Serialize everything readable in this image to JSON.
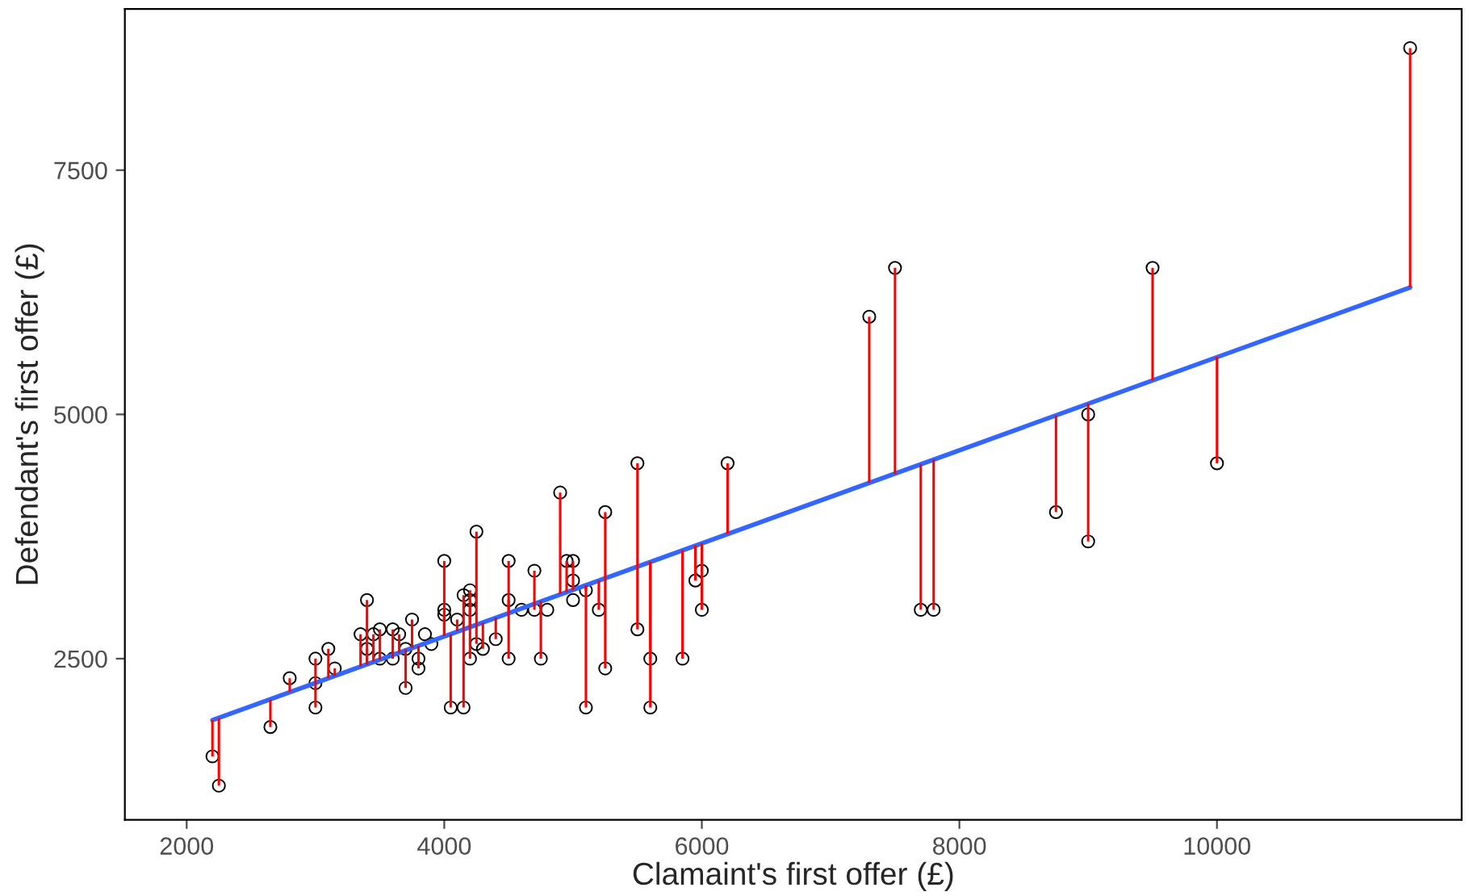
{
  "chart_data": {
    "type": "scatter",
    "xlabel": "Clamaint's first offer (£)",
    "ylabel": "Defendant's first offer (£)",
    "xlim": [
      1520,
      11900
    ],
    "ylim": [
      850,
      9150
    ],
    "xticks": [
      2000,
      4000,
      6000,
      8000,
      10000
    ],
    "yticks": [
      2500,
      5000,
      7500
    ],
    "grid": false,
    "legend": false,
    "series": [
      {
        "type": "scatter",
        "color": "#000000",
        "marker": "circle",
        "x": [
          2200,
          2250,
          2650,
          2800,
          3000,
          3000,
          3000,
          3100,
          3150,
          3350,
          3400,
          3400,
          3450,
          3500,
          3500,
          3600,
          3600,
          3650,
          3700,
          3700,
          3750,
          3800,
          3800,
          3850,
          3900,
          4000,
          4000,
          4000,
          4050,
          4100,
          4150,
          4150,
          4200,
          4200,
          4200,
          4200,
          4250,
          4250,
          4300,
          4400,
          4500,
          4500,
          4500,
          4600,
          4700,
          4700,
          4750,
          4800,
          4900,
          4950,
          5000,
          5000,
          5000,
          5100,
          5100,
          5200,
          5250,
          5250,
          5500,
          5500,
          5600,
          5600,
          5850,
          5950,
          6000,
          6000,
          6200,
          7300,
          7500,
          7700,
          7800,
          8750,
          9000,
          9000,
          9500,
          10000,
          11500
        ],
        "values": [
          1500,
          1200,
          1800,
          2300,
          2500,
          2000,
          2250,
          2600,
          2400,
          2750,
          3100,
          2600,
          2750,
          2500,
          2800,
          2800,
          2500,
          2750,
          2200,
          2600,
          2900,
          2500,
          2400,
          2750,
          2650,
          3500,
          3000,
          2950,
          2000,
          2900,
          3150,
          2000,
          3200,
          3100,
          3000,
          2500,
          3800,
          2650,
          2600,
          2700,
          3500,
          3100,
          2500,
          3000,
          3400,
          3000,
          2500,
          3000,
          4200,
          3500,
          3500,
          3300,
          3100,
          3200,
          2000,
          3000,
          4000,
          2400,
          4500,
          2800,
          2500,
          2000,
          2500,
          3300,
          3400,
          3000,
          4500,
          6000,
          6500,
          3000,
          3000,
          4000,
          5000,
          3700,
          6500,
          4500,
          8750
        ],
        "errors": [
          [
            1500,
            1870
          ],
          [
            1200,
            1890
          ],
          [
            1800,
            2080
          ],
          [
            2160,
            2300
          ],
          [
            2250,
            2500
          ],
          [
            2000,
            2250
          ],
          null,
          [
            2300,
            2600
          ],
          [
            2320,
            2400
          ],
          [
            2420,
            2750
          ],
          [
            2440,
            3100
          ],
          [
            2440,
            2600
          ],
          [
            2470,
            2750
          ],
          null,
          [
            2490,
            2800
          ],
          [
            2540,
            2800
          ],
          [
            2500,
            2540
          ],
          [
            2560,
            2750
          ],
          [
            2200,
            2580
          ],
          [
            2580,
            2600
          ],
          [
            2610,
            2900
          ],
          [
            2500,
            2630
          ],
          [
            2400,
            2630
          ],
          null,
          null,
          [
            2730,
            3500
          ],
          [
            2730,
            3000
          ],
          [
            2730,
            2950
          ],
          [
            2000,
            2750
          ],
          [
            2780,
            2900
          ],
          [
            2800,
            3150
          ],
          [
            2000,
            2800
          ],
          [
            2820,
            3200
          ],
          [
            2820,
            3100
          ],
          [
            2820,
            3000
          ],
          [
            2500,
            2820
          ],
          [
            2850,
            3800
          ],
          [
            2650,
            2850
          ],
          [
            2600,
            2870
          ],
          [
            2700,
            2920
          ],
          [
            2970,
            3500
          ],
          [
            2970,
            3100
          ],
          [
            2500,
            2970
          ],
          null,
          [
            3060,
            3400
          ],
          [
            3000,
            3060
          ],
          [
            2500,
            3090
          ],
          null,
          [
            3160,
            4200
          ],
          [
            3180,
            3500
          ],
          [
            3200,
            3500
          ],
          null,
          null,
          [
            3200,
            3250
          ],
          [
            2000,
            3250
          ],
          [
            3000,
            3300
          ],
          [
            3320,
            4000
          ],
          [
            2400,
            3320
          ],
          [
            3440,
            4500
          ],
          [
            2800,
            3440
          ],
          [
            2500,
            3490
          ],
          [
            2000,
            3490
          ],
          [
            2500,
            3610
          ],
          [
            3300,
            3660
          ],
          [
            3400,
            3680
          ],
          [
            3000,
            3680
          ],
          [
            3780,
            4500
          ],
          [
            4300,
            6000
          ],
          [
            4390,
            6500
          ],
          [
            3000,
            4490
          ],
          [
            3000,
            4540
          ],
          [
            4000,
            4990
          ],
          null,
          [
            3700,
            5110
          ],
          [
            5350,
            6500
          ],
          [
            4500,
            5590
          ],
          [
            6300,
            8750
          ]
        ]
      },
      {
        "type": "line",
        "color": "#3366ff",
        "marker": "none",
        "line_style": "solid",
        "x": [
          2200,
          11500
        ],
        "values": [
          1870,
          6300
        ]
      }
    ]
  }
}
